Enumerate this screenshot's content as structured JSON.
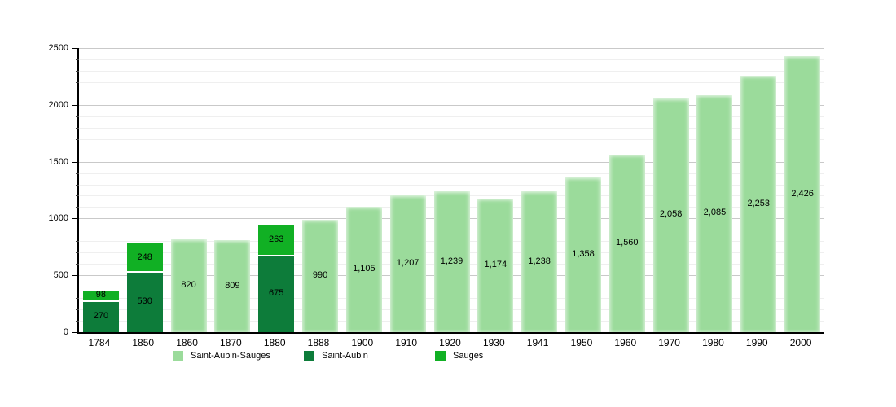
{
  "chart_data": {
    "type": "bar",
    "stacked": true,
    "title": "",
    "xlabel": "",
    "ylabel": "",
    "ylim": [
      0,
      2500
    ],
    "yticks": [
      {
        "value": 0,
        "label": "0"
      },
      {
        "value": 500,
        "label": "500"
      },
      {
        "value": 1000,
        "label": "1000"
      },
      {
        "value": 1500,
        "label": "1500"
      },
      {
        "value": 2000,
        "label": "2000"
      },
      {
        "value": 2500,
        "label": "2500"
      }
    ],
    "grid": {
      "major": 500,
      "minor": 100,
      "visible": true
    },
    "legend_position": "bottom",
    "categories": [
      "1784",
      "1850",
      "1860",
      "1870",
      "1880",
      "1888",
      "1900",
      "1910",
      "1920",
      "1930",
      "1941",
      "1950",
      "1960",
      "1970",
      "1980",
      "1990",
      "2000"
    ],
    "series": [
      {
        "name": "Saint-Aubin-Sauges",
        "color": "#9bdb9b",
        "values": [
          null,
          null,
          820,
          809,
          null,
          990,
          1105,
          1207,
          1239,
          1174,
          1238,
          1358,
          1560,
          2058,
          2085,
          2253,
          2426
        ]
      },
      {
        "name": "Saint-Aubin",
        "color": "#0d7c3a",
        "values": [
          270,
          530,
          null,
          null,
          675,
          null,
          null,
          null,
          null,
          null,
          null,
          null,
          null,
          null,
          null,
          null,
          null
        ]
      },
      {
        "name": "Sauges",
        "color": "#11b024",
        "values": [
          98,
          248,
          null,
          null,
          263,
          null,
          null,
          null,
          null,
          null,
          null,
          null,
          null,
          null,
          null,
          null,
          null
        ]
      }
    ],
    "bars": [
      {
        "category": "1784",
        "segments": [
          {
            "series": "Saint-Aubin",
            "value": 270,
            "label": "270"
          },
          {
            "series": "Sauges",
            "value": 98,
            "label": "98"
          }
        ]
      },
      {
        "category": "1850",
        "segments": [
          {
            "series": "Saint-Aubin",
            "value": 530,
            "label": "530"
          },
          {
            "series": "Sauges",
            "value": 248,
            "label": "248"
          }
        ]
      },
      {
        "category": "1860",
        "segments": [
          {
            "series": "Saint-Aubin-Sauges",
            "value": 820,
            "label": "820"
          }
        ]
      },
      {
        "category": "1870",
        "segments": [
          {
            "series": "Saint-Aubin-Sauges",
            "value": 809,
            "label": "809"
          }
        ]
      },
      {
        "category": "1880",
        "segments": [
          {
            "series": "Saint-Aubin",
            "value": 675,
            "label": "675"
          },
          {
            "series": "Sauges",
            "value": 263,
            "label": "263"
          }
        ]
      },
      {
        "category": "1888",
        "segments": [
          {
            "series": "Saint-Aubin-Sauges",
            "value": 990,
            "label": "990"
          }
        ]
      },
      {
        "category": "1900",
        "segments": [
          {
            "series": "Saint-Aubin-Sauges",
            "value": 1105,
            "label": "1,105"
          }
        ]
      },
      {
        "category": "1910",
        "segments": [
          {
            "series": "Saint-Aubin-Sauges",
            "value": 1207,
            "label": "1,207"
          }
        ]
      },
      {
        "category": "1920",
        "segments": [
          {
            "series": "Saint-Aubin-Sauges",
            "value": 1239,
            "label": "1,239"
          }
        ]
      },
      {
        "category": "1930",
        "segments": [
          {
            "series": "Saint-Aubin-Sauges",
            "value": 1174,
            "label": "1,174"
          }
        ]
      },
      {
        "category": "1941",
        "segments": [
          {
            "series": "Saint-Aubin-Sauges",
            "value": 1238,
            "label": "1,238"
          }
        ]
      },
      {
        "category": "1950",
        "segments": [
          {
            "series": "Saint-Aubin-Sauges",
            "value": 1358,
            "label": "1,358"
          }
        ]
      },
      {
        "category": "1960",
        "segments": [
          {
            "series": "Saint-Aubin-Sauges",
            "value": 1560,
            "label": "1,560"
          }
        ]
      },
      {
        "category": "1970",
        "segments": [
          {
            "series": "Saint-Aubin-Sauges",
            "value": 2058,
            "label": "2,058"
          }
        ]
      },
      {
        "category": "1980",
        "segments": [
          {
            "series": "Saint-Aubin-Sauges",
            "value": 2085,
            "label": "2,085"
          }
        ]
      },
      {
        "category": "1990",
        "segments": [
          {
            "series": "Saint-Aubin-Sauges",
            "value": 2253,
            "label": "2,253"
          }
        ]
      },
      {
        "category": "2000",
        "segments": [
          {
            "series": "Saint-Aubin-Sauges",
            "value": 2426,
            "label": "2,426"
          }
        ]
      }
    ],
    "colors": {
      "Saint-Aubin-Sauges": "#9bdb9b",
      "Saint-Aubin": "#0d7c3a",
      "Sauges": "#11b024",
      "grid_major": "#c9c9c9",
      "grid_minor": "#efefef",
      "axis": "#000000"
    },
    "legend": [
      {
        "label": "Saint-Aubin-Sauges",
        "color": "#9bdb9b"
      },
      {
        "label": "Saint-Aubin",
        "color": "#0d7c3a"
      },
      {
        "label": "Sauges",
        "color": "#11b024"
      }
    ]
  }
}
